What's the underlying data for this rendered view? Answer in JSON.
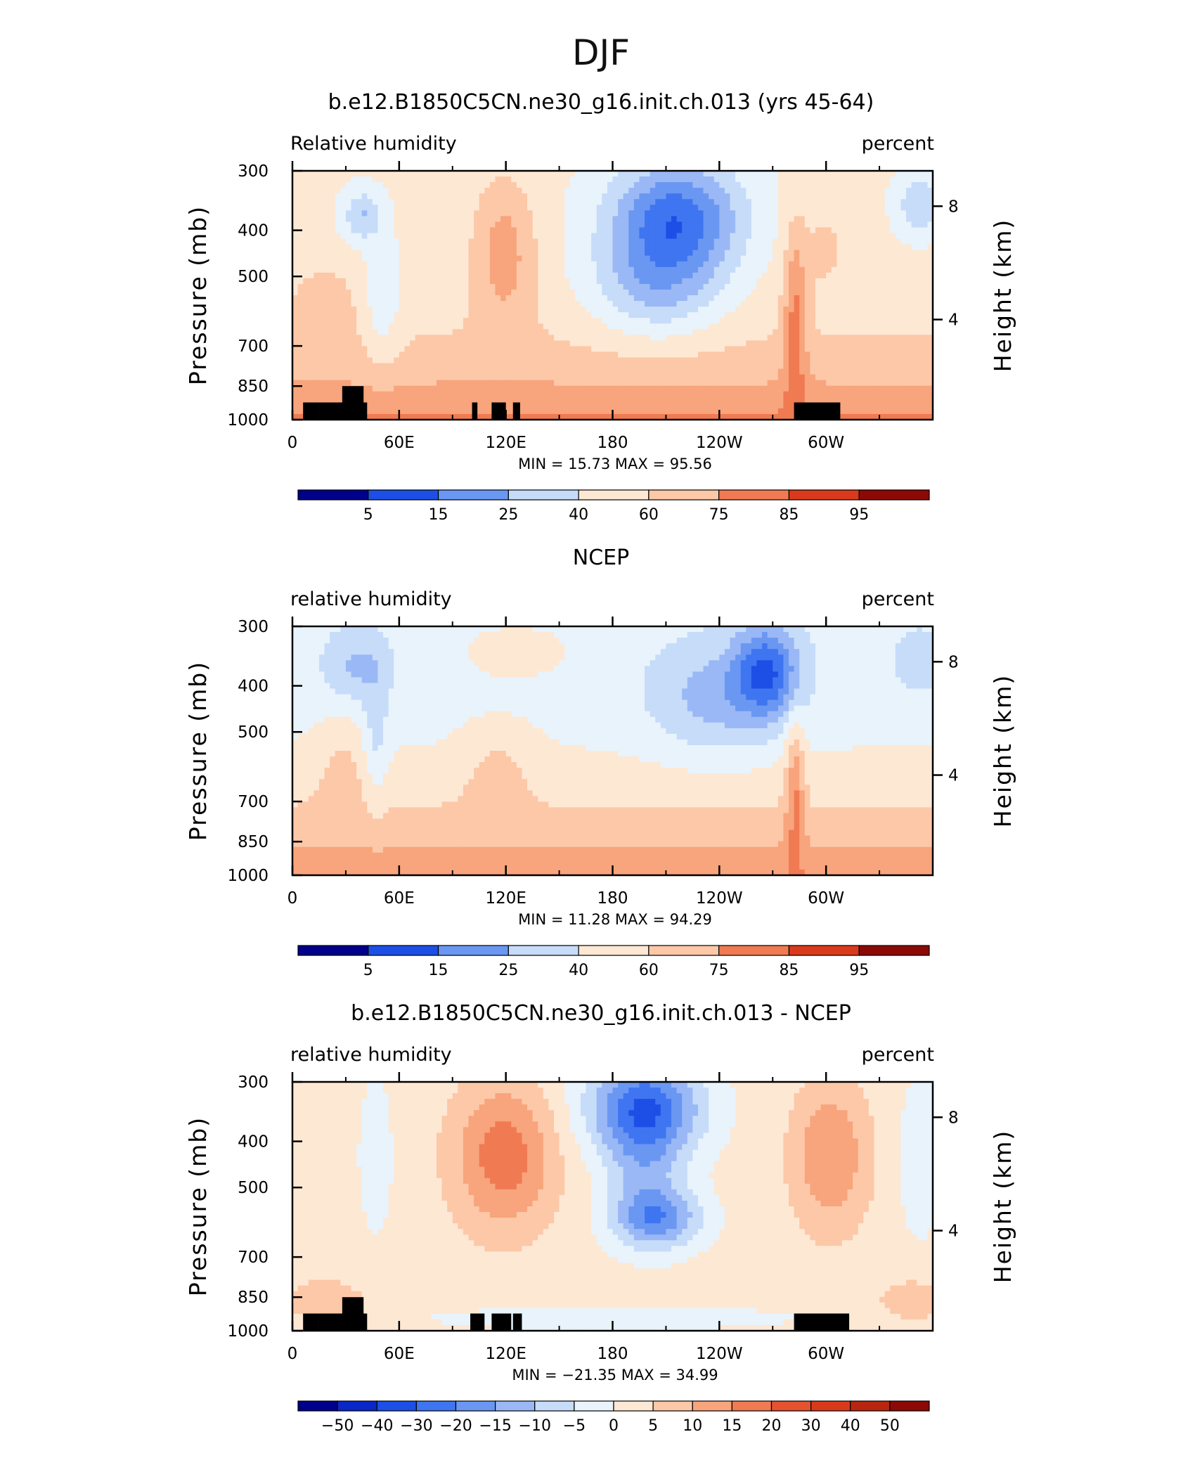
{
  "figure": {
    "title": "DJF"
  },
  "chart_data": [
    {
      "type": "heatmap",
      "title": "b.e12.B1850C5CN.ne30_g16.init.ch.013 (yrs 45-64)",
      "variable_label": "Relative humidity",
      "units_label": "percent",
      "ylabel": "Pressure (mb)",
      "ylabel_right": "Height (km)",
      "y_ticks": [
        "300",
        "400",
        "500",
        "700",
        "850",
        "1000"
      ],
      "y_right_ticks": [
        "8",
        "4"
      ],
      "x_ticks": [
        "0",
        "60E",
        "120E",
        "180",
        "120W",
        "60W"
      ],
      "stats": "MIN =   15.73   MAX =   95.56",
      "min": 15.73,
      "max": 95.56,
      "colorbar_labels": [
        "5",
        "15",
        "25",
        "40",
        "60",
        "75",
        "85",
        "95"
      ],
      "grid": false,
      "topography_mask": true
    },
    {
      "type": "heatmap",
      "title": "NCEP",
      "variable_label": "relative humidity",
      "units_label": "percent",
      "ylabel": "Pressure (mb)",
      "ylabel_right": "Height (km)",
      "y_ticks": [
        "300",
        "400",
        "500",
        "700",
        "850",
        "1000"
      ],
      "y_right_ticks": [
        "8",
        "4"
      ],
      "x_ticks": [
        "0",
        "60E",
        "120E",
        "180",
        "120W",
        "60W"
      ],
      "stats": "MIN =   11.28   MAX =   94.29",
      "min": 11.28,
      "max": 94.29,
      "colorbar_labels": [
        "5",
        "15",
        "25",
        "40",
        "60",
        "75",
        "85",
        "95"
      ],
      "grid": false,
      "topography_mask": false
    },
    {
      "type": "heatmap",
      "title": "b.e12.B1850C5CN.ne30_g16.init.ch.013 - NCEP",
      "variable_label": "relative humidity",
      "units_label": "percent",
      "ylabel": "Pressure (mb)",
      "ylabel_right": "Height (km)",
      "y_ticks": [
        "300",
        "400",
        "500",
        "700",
        "850",
        "1000"
      ],
      "y_right_ticks": [
        "8",
        "4"
      ],
      "x_ticks": [
        "0",
        "60E",
        "120E",
        "180",
        "120W",
        "60W"
      ],
      "stats": "MIN = −21.35   MAX =   34.99",
      "min": -21.35,
      "max": 34.99,
      "colorbar_labels": [
        "−50",
        "−40",
        "−30",
        "−20",
        "−15",
        "−10",
        "−5",
        "0",
        "5",
        "10",
        "15",
        "20",
        "30",
        "40",
        "50"
      ],
      "grid": false,
      "topography_mask": true
    }
  ],
  "palette": [
    "#00008b",
    "#0a27c8",
    "#1d4fe6",
    "#3f75f0",
    "#6a97f2",
    "#9ab8f5",
    "#c6dcf9",
    "#e8f3fc",
    "#fde8d4",
    "#fcc8a8",
    "#f8a47c",
    "#f07a52",
    "#e4522f",
    "#d93a1c",
    "#b8260f",
    "#8b0a05"
  ]
}
